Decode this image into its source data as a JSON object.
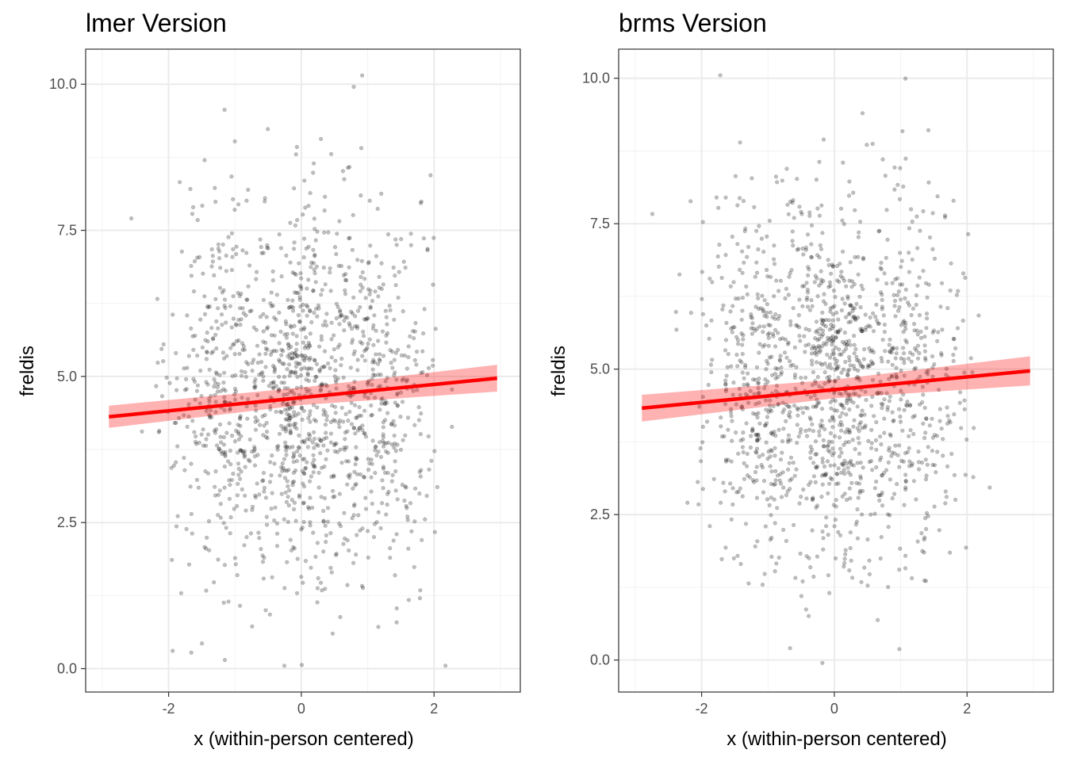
{
  "chart_data": [
    {
      "type": "scatter",
      "title": "lmer Version",
      "xlabel": "x (within-person centered)",
      "ylabel": "freldis",
      "xlim": [
        -3.25,
        3.3
      ],
      "ylim": [
        -0.4,
        10.6
      ],
      "xticks": [
        -2,
        0,
        2
      ],
      "xtick_labels": [
        "-2",
        "0",
        "2"
      ],
      "yticks": [
        0,
        2.5,
        5,
        7.5,
        10
      ],
      "ytick_labels": [
        "0.0",
        "2.5",
        "5.0",
        "7.5",
        "10.0"
      ],
      "grid": true,
      "points_count": 1400,
      "points": {
        "x_mean": 0,
        "x_sd": 1.0,
        "y_mean": 4.7,
        "y_sd": 1.6,
        "alpha": 0.25
      },
      "fit_line": {
        "x": [
          -2.9,
          2.95
        ],
        "y": [
          4.31,
          4.97
        ],
        "color": "#ff0000"
      },
      "ribbon": {
        "x": [
          -2.9,
          0,
          2.95
        ],
        "lower": [
          4.12,
          4.51,
          4.74
        ],
        "upper": [
          4.5,
          4.81,
          5.2
        ],
        "color": "#ff0000",
        "alpha": 0.3
      }
    },
    {
      "type": "scatter",
      "title": "brms Version",
      "xlabel": "x (within-person centered)",
      "ylabel": "freldis",
      "xlim": [
        -3.25,
        3.3
      ],
      "ylim": [
        -0.55,
        10.5
      ],
      "xticks": [
        -2,
        0,
        2
      ],
      "xtick_labels": [
        "-2",
        "0",
        "2"
      ],
      "yticks": [
        0,
        2.5,
        5,
        7.5,
        10
      ],
      "ytick_labels": [
        "0.0",
        "2.5",
        "5.0",
        "7.5",
        "10.0"
      ],
      "grid": true,
      "points_count": 1400,
      "points": {
        "x_mean": 0,
        "x_sd": 1.0,
        "y_mean": 4.7,
        "y_sd": 1.6,
        "alpha": 0.25
      },
      "fit_line": {
        "x": [
          -2.9,
          2.95
        ],
        "y": [
          4.33,
          4.97
        ],
        "color": "#ff0000"
      },
      "ribbon": {
        "x": [
          -2.9,
          0,
          2.95
        ],
        "lower": [
          4.1,
          4.5,
          4.72
        ],
        "upper": [
          4.56,
          4.82,
          5.22
        ],
        "color": "#ff0000",
        "alpha": 0.3
      }
    }
  ]
}
